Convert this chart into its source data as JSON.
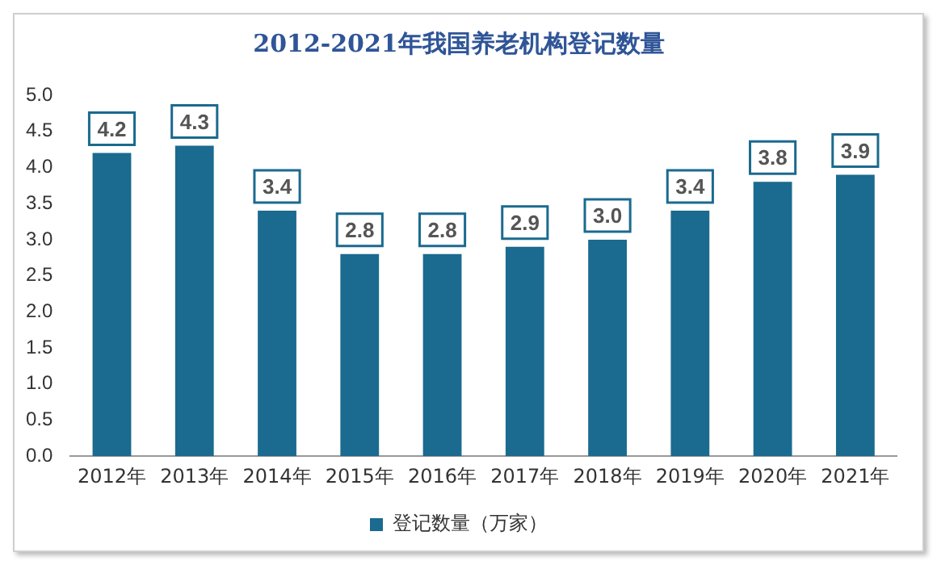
{
  "chart_data": {
    "type": "bar",
    "title": "2012-2021年我国养老机构登记数量",
    "categories": [
      "2012年",
      "2013年",
      "2014年",
      "2015年",
      "2016年",
      "2017年",
      "2018年",
      "2019年",
      "2020年",
      "2021年"
    ],
    "series": [
      {
        "name": "登记数量（万家）",
        "color": "#1b6a8f",
        "values": [
          4.2,
          4.3,
          3.4,
          2.8,
          2.8,
          2.9,
          3.0,
          3.4,
          3.8,
          3.9
        ]
      }
    ],
    "value_labels": [
      "4.2",
      "4.3",
      "3.4",
      "2.8",
      "2.8",
      "2.9",
      "3.0",
      "3.4",
      "3.8",
      "3.9"
    ],
    "ylim": [
      0,
      5
    ],
    "yticks": [
      {
        "value": 0,
        "label": "0.0"
      },
      {
        "value": 0.5,
        "label": "0.5"
      },
      {
        "value": 1,
        "label": "1.0"
      },
      {
        "value": 1.5,
        "label": "1.5"
      },
      {
        "value": 2,
        "label": "2.0"
      },
      {
        "value": 2.5,
        "label": "2.5"
      },
      {
        "value": 3,
        "label": "3.0"
      },
      {
        "value": 3.5,
        "label": "3.5"
      },
      {
        "value": 4,
        "label": "4.0"
      },
      {
        "value": 4.5,
        "label": "4.5"
      },
      {
        "value": 5,
        "label": "5.0"
      }
    ],
    "grid": false,
    "legend": "bottom"
  }
}
